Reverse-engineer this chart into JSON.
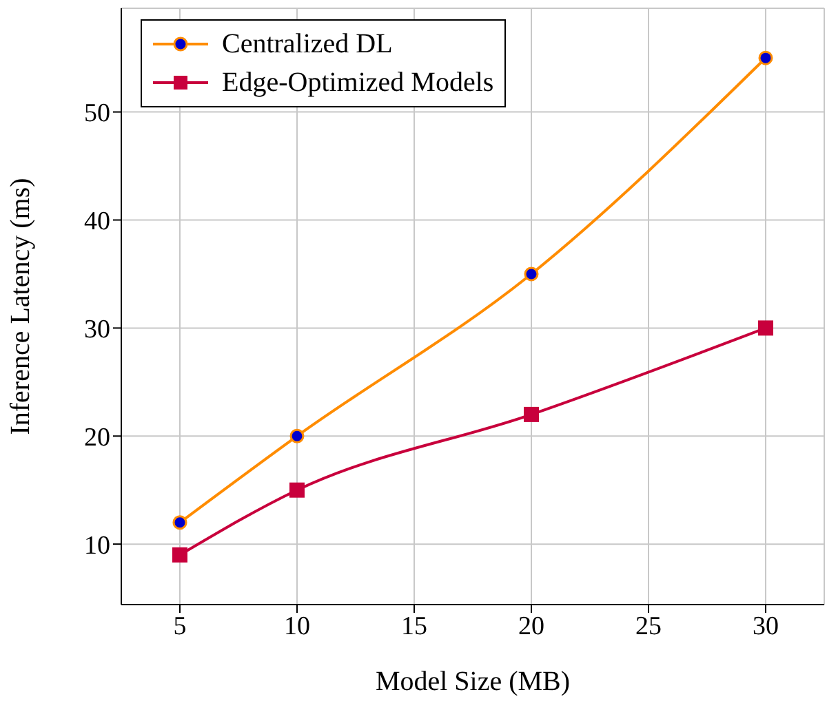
{
  "chart_data": {
    "type": "line",
    "xlabel": "Model Size (MB)",
    "ylabel": "Inference Latency (ms)",
    "x": [
      5,
      10,
      20,
      30
    ],
    "series": [
      {
        "name": "Centralized DL",
        "color": "#ff8c00",
        "marker": "circle",
        "values": [
          12,
          20,
          35,
          55
        ]
      },
      {
        "name": "Edge-Optimized Models",
        "color": "#c8003c",
        "marker": "square",
        "values": [
          9,
          15,
          22,
          30
        ]
      }
    ],
    "xlim": [
      2.5,
      32.5
    ],
    "xticks": [
      5,
      10,
      15,
      20,
      25,
      30
    ],
    "ylim": [
      4.4,
      59.6
    ],
    "yticks": [
      10,
      20,
      30,
      40,
      50
    ],
    "grid": true,
    "legend": "top left"
  }
}
